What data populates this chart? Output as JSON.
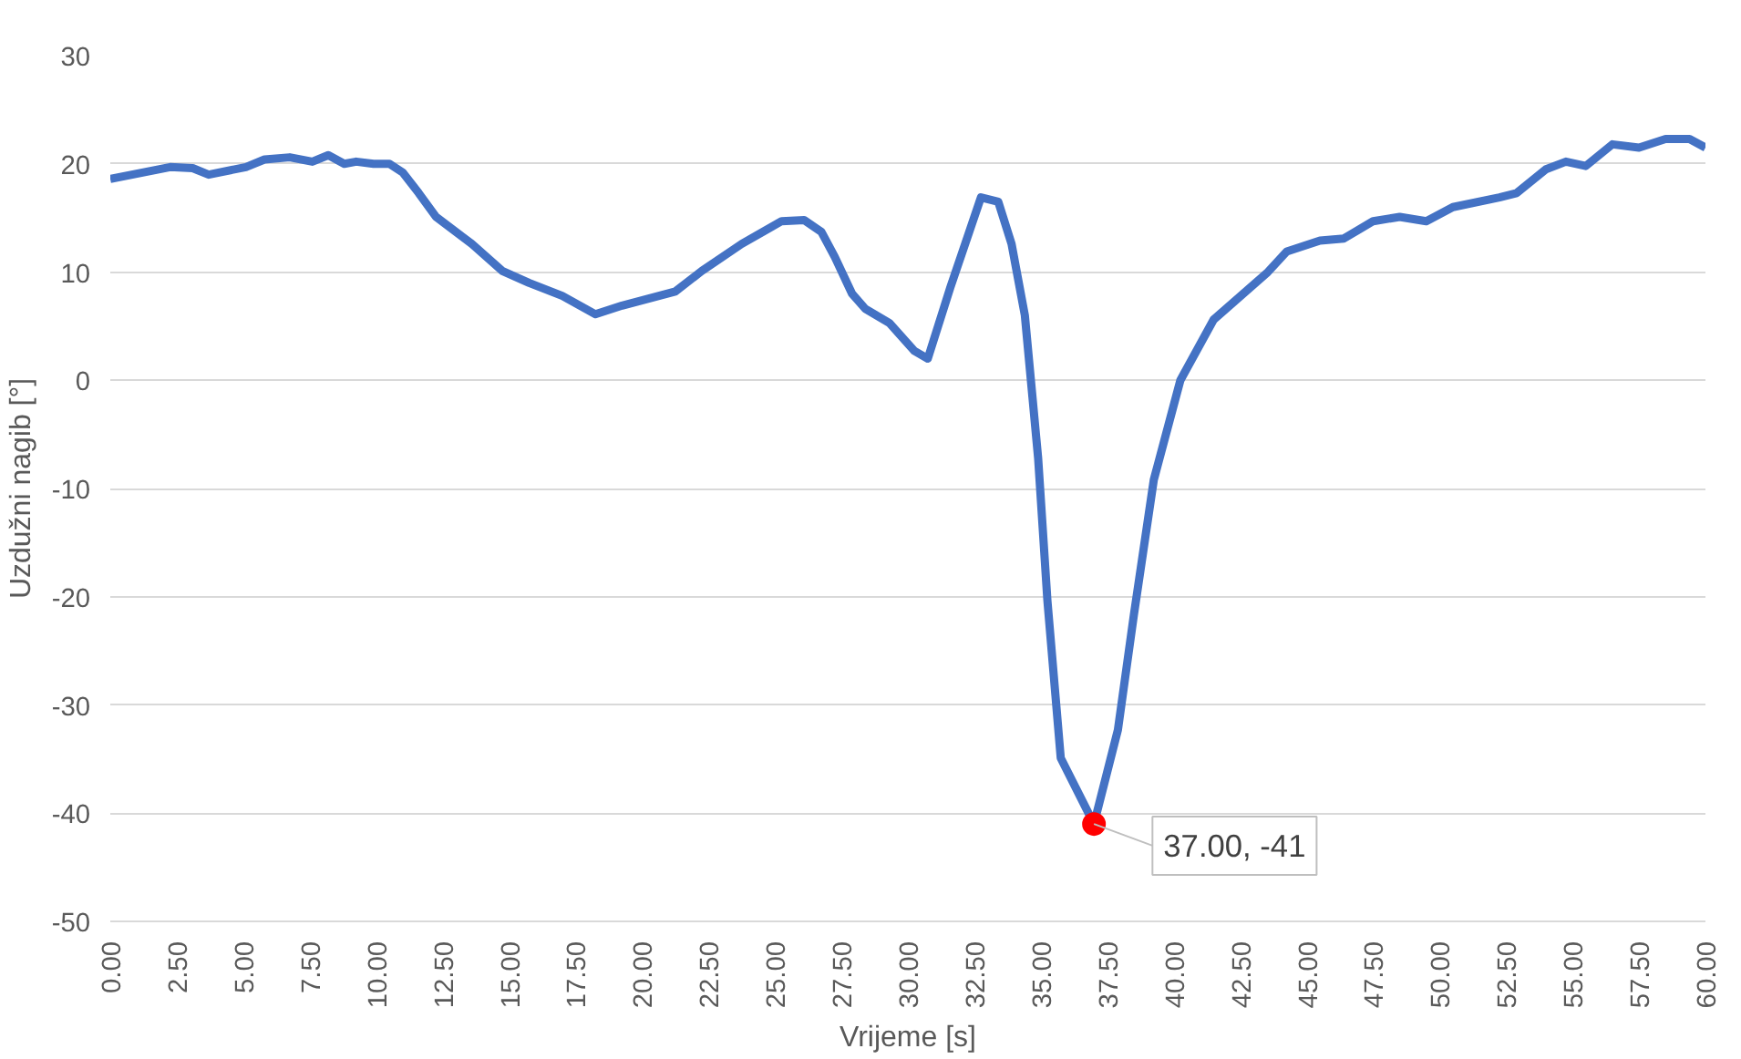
{
  "chart_data": {
    "type": "line",
    "xlabel": "Vrijeme [s]",
    "ylabel": "Uzdužni nagib [°]",
    "xlim": [
      0,
      60
    ],
    "ylim": [
      -50,
      30
    ],
    "xticks": [
      {
        "value": 0,
        "label": "0.00"
      },
      {
        "value": 2.5,
        "label": "2.50"
      },
      {
        "value": 5,
        "label": "5.00"
      },
      {
        "value": 7.5,
        "label": "7.50"
      },
      {
        "value": 10,
        "label": "10.00"
      },
      {
        "value": 12.5,
        "label": "12.50"
      },
      {
        "value": 15,
        "label": "15.00"
      },
      {
        "value": 17.5,
        "label": "17.50"
      },
      {
        "value": 20,
        "label": "20.00"
      },
      {
        "value": 22.5,
        "label": "22.50"
      },
      {
        "value": 25,
        "label": "25.00"
      },
      {
        "value": 27.5,
        "label": "27.50"
      },
      {
        "value": 30,
        "label": "30.00"
      },
      {
        "value": 32.5,
        "label": "32.50"
      },
      {
        "value": 35,
        "label": "35.00"
      },
      {
        "value": 37.5,
        "label": "37.50"
      },
      {
        "value": 40,
        "label": "40.00"
      },
      {
        "value": 42.5,
        "label": "42.50"
      },
      {
        "value": 45,
        "label": "45.00"
      },
      {
        "value": 47.5,
        "label": "47.50"
      },
      {
        "value": 50,
        "label": "50.00"
      },
      {
        "value": 52.5,
        "label": "52.50"
      },
      {
        "value": 55,
        "label": "55.00"
      },
      {
        "value": 57.5,
        "label": "57.50"
      },
      {
        "value": 60,
        "label": "60.00"
      }
    ],
    "yticks": [
      -50,
      -40,
      -30,
      -20,
      -10,
      0,
      10,
      20,
      30
    ],
    "grid": "y",
    "line_style": "solid",
    "series": [
      {
        "color": "#4472c4",
        "marker": "none",
        "x": [
          0,
          2.25,
          3.1,
          3.7,
          5.1,
          5.8,
          6.75,
          7.6,
          8.2,
          8.8,
          9.25,
          9.9,
          10.5,
          11.0,
          11.6,
          12.25,
          13.6,
          14.75,
          15.75,
          17.0,
          18.25,
          19.25,
          21.25,
          22.25,
          23.75,
          25.25,
          26.1,
          26.75,
          27.25,
          27.9,
          28.4,
          29.3,
          30.25,
          30.75,
          31.6,
          32.75,
          33.4,
          33.9,
          34.4,
          34.9,
          35.25,
          35.75,
          37,
          37.9,
          38.5,
          39.25,
          40.25,
          41.5,
          43.5,
          44.25,
          45.5,
          46.4,
          47.5,
          48.5,
          49.5,
          50.5,
          52.25,
          52.9,
          54.0,
          54.75,
          55.5,
          56.5,
          57.5,
          58.5,
          59.4,
          60
        ],
        "values": [
          18.6,
          19.7,
          19.6,
          19.0,
          19.7,
          20.4,
          20.6,
          20.2,
          20.8,
          20.0,
          20.2,
          20.0,
          20.0,
          19.2,
          17.3,
          15.1,
          12.6,
          10.1,
          9.0,
          7.8,
          6.1,
          6.9,
          8.2,
          10.1,
          12.6,
          14.7,
          14.8,
          13.7,
          11.4,
          8.0,
          6.6,
          5.3,
          2.7,
          2.0,
          8.6,
          16.9,
          16.5,
          12.6,
          6.0,
          -7.2,
          -20.4,
          -34.9,
          -41,
          -32.3,
          -21.7,
          -9.2,
          0,
          5.6,
          9.9,
          11.9,
          12.9,
          13.1,
          14.7,
          15.1,
          14.7,
          16.0,
          16.9,
          17.3,
          19.5,
          20.2,
          19.8,
          21.8,
          21.5,
          22.3,
          22.3,
          21.5
        ]
      },
      {
        "type": "scatter",
        "color": "#ff0000",
        "marker": "circle",
        "x": [
          37
        ],
        "values": [
          -41
        ]
      }
    ],
    "annotations": [
      {
        "text": "37.00, -41",
        "x": 37,
        "y": -41
      }
    ]
  }
}
